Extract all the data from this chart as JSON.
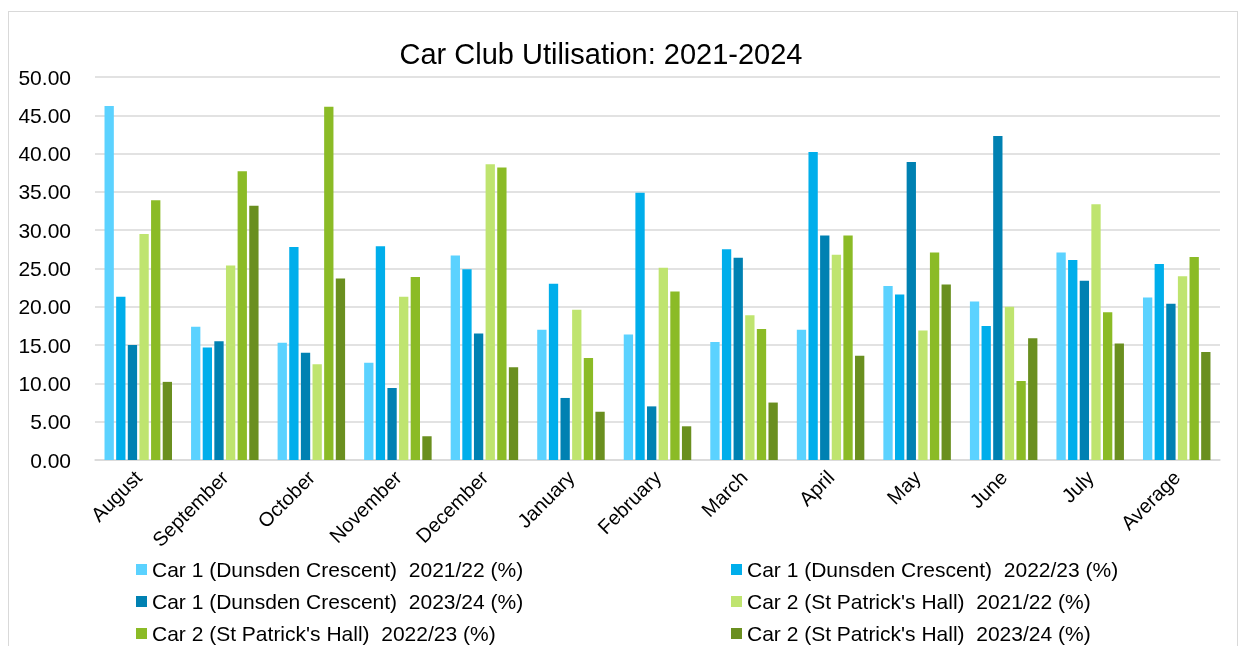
{
  "chart_data": {
    "type": "bar",
    "title": "Car Club Utilisation: 2021-2024",
    "categories": [
      "August",
      "September",
      "October",
      "November",
      "December",
      "January",
      "February",
      "March",
      "April",
      "May",
      "June",
      "July",
      "Average"
    ],
    "series": [
      {
        "name": "Car 1 (Dunsden Crescent)  2021/22 (%)",
        "color": "#5bd2ff",
        "values": [
          46.2,
          17.4,
          15.3,
          12.7,
          26.7,
          17.0,
          16.4,
          15.4,
          17.0,
          22.7,
          20.7,
          27.1,
          21.2
        ]
      },
      {
        "name": "Car 1 (Dunsden Crescent)  2022/23 (%)",
        "color": "#00aeeb",
        "values": [
          21.3,
          14.7,
          27.8,
          27.9,
          24.9,
          23.0,
          34.9,
          27.5,
          40.2,
          21.6,
          17.5,
          26.1,
          25.6
        ]
      },
      {
        "name": "Car 1 (Dunsden Crescent)  2023/24 (%)",
        "color": "#0081b2",
        "values": [
          15.0,
          15.5,
          14.0,
          9.4,
          16.5,
          8.1,
          7.0,
          26.4,
          29.3,
          38.9,
          42.3,
          23.4,
          20.4
        ]
      },
      {
        "name": "Car 2 (St Patrick's Hall)  2021/22 (%)",
        "color": "#bfe46f",
        "values": [
          29.5,
          25.4,
          12.5,
          21.3,
          38.6,
          19.6,
          25.1,
          18.9,
          26.8,
          16.9,
          20.0,
          33.4,
          24.0
        ]
      },
      {
        "name": "Car 2 (St Patrick's Hall)  2022/23 (%)",
        "color": "#8bbb26",
        "values": [
          33.9,
          37.7,
          46.1,
          23.9,
          38.2,
          13.3,
          22.0,
          17.1,
          29.3,
          27.1,
          10.3,
          19.3,
          26.5
        ]
      },
      {
        "name": "Car 2 (St Patrick's Hall)  2023/24 (%)",
        "color": "#6a8f1f",
        "values": [
          10.2,
          33.2,
          23.7,
          3.1,
          12.1,
          6.3,
          4.4,
          7.5,
          13.6,
          22.9,
          15.9,
          15.2,
          14.1
        ]
      }
    ],
    "ylim": [
      0,
      50
    ],
    "yticks": [
      {
        "value": 0,
        "label": "0.00"
      },
      {
        "value": 5,
        "label": "5.00"
      },
      {
        "value": 10,
        "label": "10.00"
      },
      {
        "value": 15,
        "label": "15.00"
      },
      {
        "value": 20,
        "label": "20.00"
      },
      {
        "value": 25,
        "label": "25.00"
      },
      {
        "value": 30,
        "label": "30.00"
      },
      {
        "value": 35,
        "label": "35.00"
      },
      {
        "value": 40,
        "label": "40.00"
      },
      {
        "value": 45,
        "label": "45.00"
      },
      {
        "value": 50,
        "label": "50.00"
      }
    ],
    "grid": "y",
    "legend": "bottom"
  }
}
